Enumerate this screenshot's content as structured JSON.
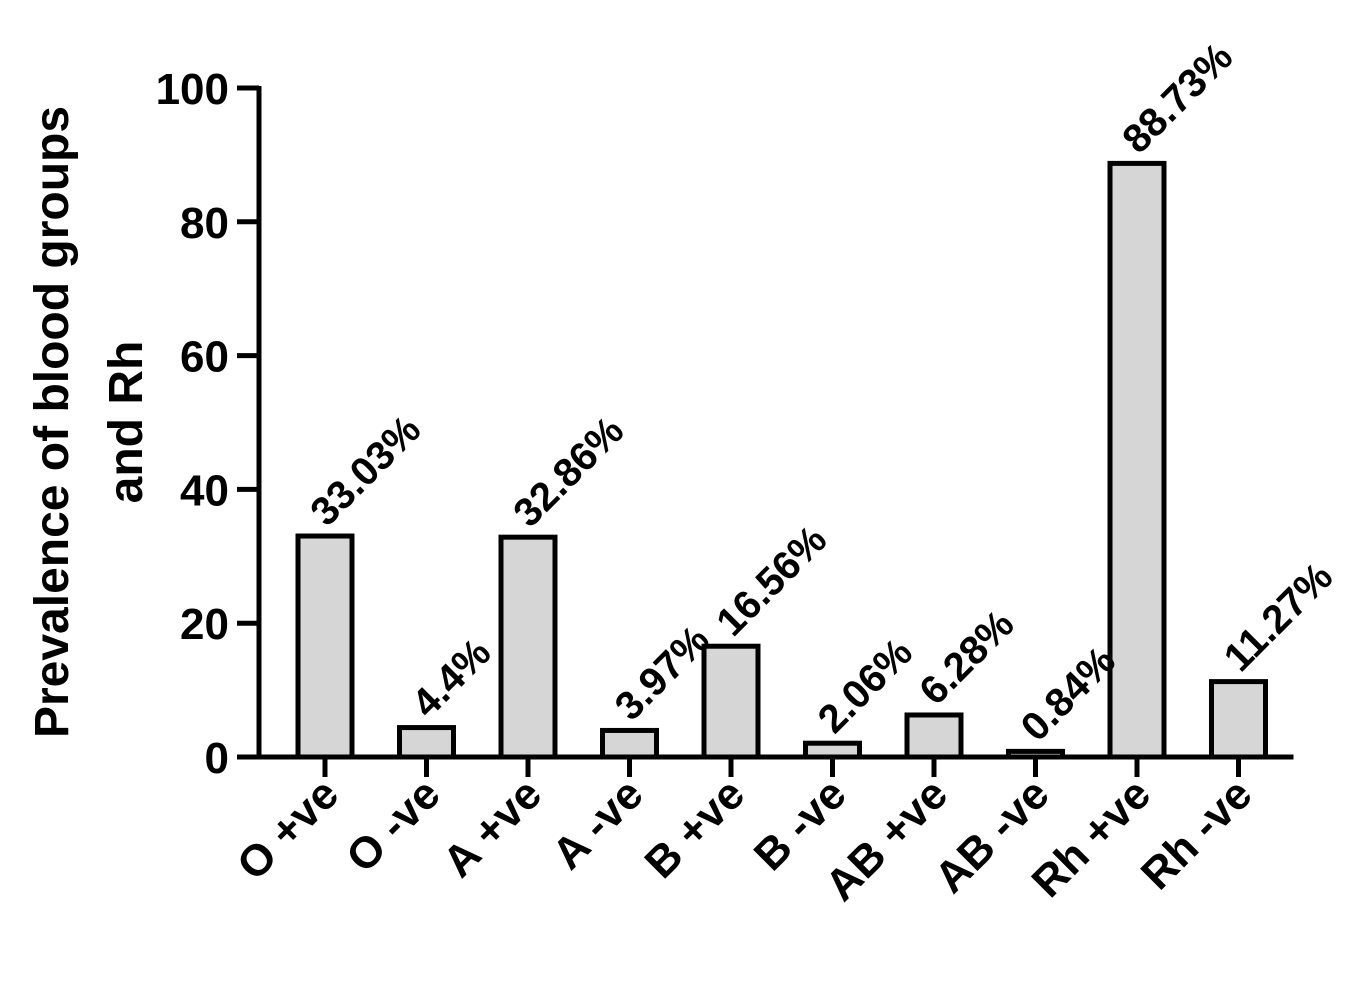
{
  "chart_data": {
    "type": "bar",
    "categories": [
      "O +ve",
      "O -ve",
      "A +ve",
      "A -ve",
      "B +ve",
      "B -ve",
      "AB +ve",
      "AB -ve",
      "Rh +ve",
      "Rh -ve"
    ],
    "values": [
      33.03,
      4.4,
      32.86,
      3.97,
      16.56,
      2.06,
      6.28,
      0.84,
      88.73,
      11.27
    ],
    "data_labels": [
      "33.03%",
      "4.4%",
      "32.86%",
      "3.97%",
      "16.56%",
      "2.06%",
      "6.28%",
      "0.84%",
      "88.73%",
      "11.27%"
    ],
    "title": "",
    "xlabel": "",
    "ylabel_lines": [
      "Prevalence of blood groups",
      "and Rh"
    ],
    "ylim": [
      0,
      100
    ],
    "yticks": [
      "0",
      "20",
      "40",
      "60",
      "80",
      "100"
    ],
    "grid": false,
    "bar_color": "#d6d6d6",
    "edge_color": "#000000"
  }
}
